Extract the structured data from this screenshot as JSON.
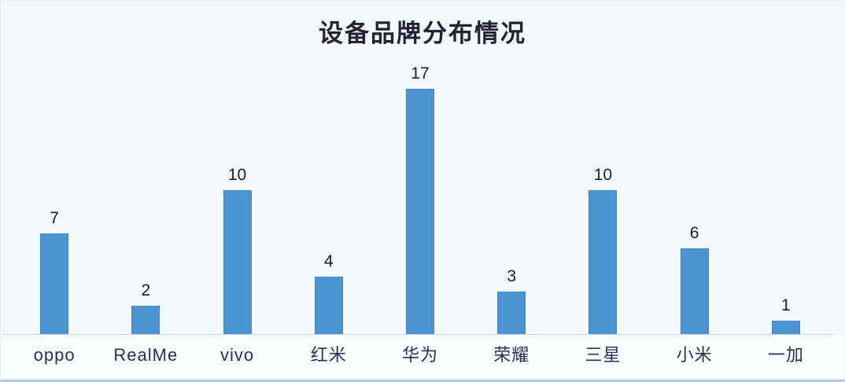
{
  "chart_data": {
    "type": "bar",
    "title": "设备品牌分布情况",
    "categories": [
      "oppo",
      "RealMe",
      "vivo",
      "红米",
      "华为",
      "荣耀",
      "三星",
      "小米",
      "一加"
    ],
    "values": [
      7,
      2,
      10,
      4,
      17,
      3,
      10,
      6,
      1
    ],
    "xlabel": "",
    "ylabel": "",
    "ylim": [
      0,
      18
    ],
    "grid": false,
    "legend": "none",
    "value_labels_shown": true,
    "colors": {
      "bar_fill": "#4e93d2",
      "bar_border": "#3d85c6",
      "background": "#f3f8fb",
      "title_text": "#262233",
      "value_label_text": "#1d1d33",
      "category_label_text": "#322d56",
      "axis_line": "#ccd9e5",
      "bottom_edge": "#aecbe7"
    }
  }
}
